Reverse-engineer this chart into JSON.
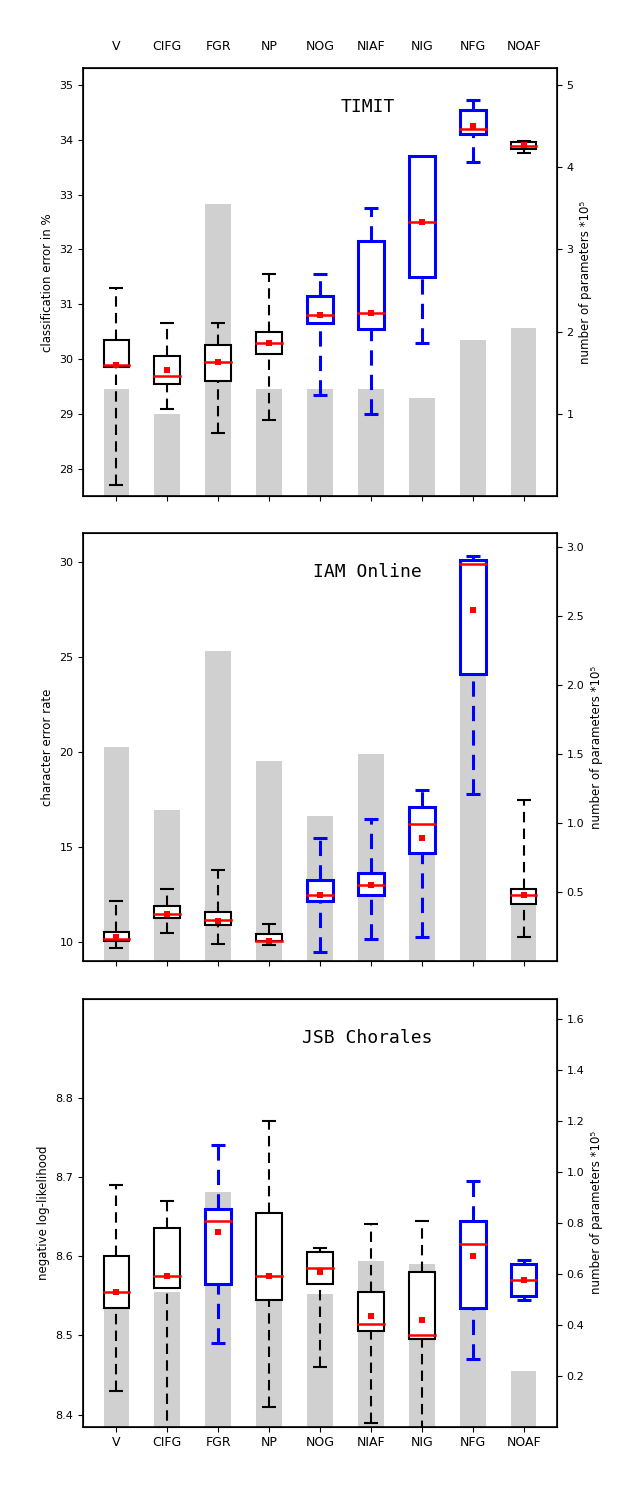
{
  "categories": [
    "V",
    "CIFG",
    "FGR",
    "NP",
    "NOG",
    "NIAF",
    "NIG",
    "NFG",
    "NOAF"
  ],
  "panel_titles": [
    "TIMIT",
    "IAM Online",
    "JSB Chorales"
  ],
  "ylabels": [
    "classification error in %",
    "character error rate",
    "negative log-likelihood"
  ],
  "ylabel_right": "number of parameters *10⁵",
  "timit": {
    "ylim": [
      27.5,
      35.3
    ],
    "yticks": [
      28,
      29,
      30,
      31,
      32,
      33,
      34,
      35
    ],
    "ylim_right": [
      0,
      5.2
    ],
    "yticks_right": [
      1,
      2,
      3,
      4,
      5
    ],
    "bar_heights": [
      1.3,
      1.0,
      3.55,
      1.3,
      1.3,
      1.3,
      1.2,
      1.9,
      2.05
    ],
    "boxes": [
      {
        "q1": 29.85,
        "median": 29.9,
        "q3": 30.35,
        "mean": 29.9,
        "whislo": 27.7,
        "whishi": 31.3,
        "color": "black"
      },
      {
        "q1": 29.55,
        "median": 29.7,
        "q3": 30.05,
        "mean": 29.8,
        "whislo": 29.1,
        "whishi": 30.65,
        "color": "black"
      },
      {
        "q1": 29.6,
        "median": 29.95,
        "q3": 30.25,
        "mean": 29.95,
        "whislo": 28.65,
        "whishi": 30.65,
        "color": "black"
      },
      {
        "q1": 30.1,
        "median": 30.3,
        "q3": 30.5,
        "mean": 30.3,
        "whislo": 28.9,
        "whishi": 31.55,
        "color": "black"
      },
      {
        "q1": 30.65,
        "median": 30.8,
        "q3": 31.15,
        "mean": 30.8,
        "whislo": 29.35,
        "whishi": 31.55,
        "color": "blue"
      },
      {
        "q1": 30.55,
        "median": 30.85,
        "q3": 32.15,
        "mean": 30.85,
        "whislo": 29.0,
        "whishi": 32.75,
        "color": "blue"
      },
      {
        "q1": 31.5,
        "median": 32.5,
        "q3": 33.7,
        "mean": 32.5,
        "whislo": 30.3,
        "whishi": 33.5,
        "color": "blue"
      },
      {
        "q1": 34.1,
        "median": 34.2,
        "q3": 34.55,
        "mean": 34.25,
        "whislo": 33.6,
        "whishi": 34.72,
        "color": "blue"
      },
      {
        "q1": 33.83,
        "median": 33.88,
        "q3": 33.95,
        "mean": 33.9,
        "whislo": 33.75,
        "whishi": 33.97,
        "color": "black"
      }
    ]
  },
  "iam": {
    "ylim": [
      9.0,
      31.5
    ],
    "yticks": [
      10,
      15,
      20,
      25,
      30
    ],
    "ylim_right": [
      0,
      3.1
    ],
    "yticks_right": [
      0.5,
      1.0,
      1.5,
      2.0,
      2.5,
      3.0
    ],
    "bar_heights": [
      1.55,
      1.1,
      2.25,
      1.45,
      1.05,
      1.5,
      0.85,
      2.75,
      0.45
    ],
    "boxes": [
      {
        "q1": 10.05,
        "median": 10.2,
        "q3": 10.55,
        "mean": 10.3,
        "whislo": 9.7,
        "whishi": 12.2,
        "color": "black"
      },
      {
        "q1": 11.3,
        "median": 11.5,
        "q3": 11.9,
        "mean": 11.5,
        "whislo": 10.5,
        "whishi": 12.8,
        "color": "black"
      },
      {
        "q1": 10.9,
        "median": 11.2,
        "q3": 11.6,
        "mean": 11.15,
        "whislo": 9.9,
        "whishi": 13.8,
        "color": "black"
      },
      {
        "q1": 10.05,
        "median": 10.1,
        "q3": 10.45,
        "mean": 10.1,
        "whislo": 9.85,
        "whishi": 10.95,
        "color": "black"
      },
      {
        "q1": 12.2,
        "median": 12.5,
        "q3": 13.3,
        "mean": 12.5,
        "whislo": 9.5,
        "whishi": 15.5,
        "color": "blue"
      },
      {
        "q1": 12.5,
        "median": 13.0,
        "q3": 13.65,
        "mean": 13.0,
        "whislo": 10.2,
        "whishi": 16.5,
        "color": "blue"
      },
      {
        "q1": 14.7,
        "median": 16.2,
        "q3": 17.1,
        "mean": 15.5,
        "whislo": 10.3,
        "whishi": 18.0,
        "color": "blue"
      },
      {
        "q1": 24.1,
        "median": 29.9,
        "q3": 30.1,
        "mean": 27.5,
        "whislo": 17.8,
        "whishi": 30.3,
        "color": "blue"
      },
      {
        "q1": 12.0,
        "median": 12.5,
        "q3": 12.8,
        "mean": 12.5,
        "whislo": 10.3,
        "whishi": 17.5,
        "color": "black"
      }
    ]
  },
  "jsb": {
    "ylim": [
      8.385,
      8.925
    ],
    "yticks": [
      8.4,
      8.5,
      8.6,
      8.7,
      8.8
    ],
    "ylim_right": [
      0.0,
      1.68
    ],
    "yticks_right": [
      0.2,
      0.4,
      0.6,
      0.8,
      1.0,
      1.2,
      1.4,
      1.6
    ],
    "bar_heights": [
      0.58,
      0.53,
      0.92,
      0.53,
      0.52,
      0.65,
      0.64,
      0.61,
      0.22
    ],
    "boxes": [
      {
        "q1": 8.535,
        "median": 8.555,
        "q3": 8.6,
        "mean": 8.555,
        "whislo": 8.43,
        "whishi": 8.69,
        "color": "black"
      },
      {
        "q1": 8.56,
        "median": 8.575,
        "q3": 8.635,
        "mean": 8.575,
        "whislo": 8.35,
        "whishi": 8.67,
        "color": "black"
      },
      {
        "q1": 8.565,
        "median": 8.645,
        "q3": 8.66,
        "mean": 8.63,
        "whislo": 8.49,
        "whishi": 8.74,
        "color": "blue"
      },
      {
        "q1": 8.545,
        "median": 8.575,
        "q3": 8.655,
        "mean": 8.575,
        "whislo": 8.41,
        "whishi": 8.77,
        "color": "black"
      },
      {
        "q1": 8.565,
        "median": 8.585,
        "q3": 8.605,
        "mean": 8.58,
        "whislo": 8.46,
        "whishi": 8.61,
        "color": "black"
      },
      {
        "q1": 8.505,
        "median": 8.515,
        "q3": 8.555,
        "mean": 8.525,
        "whislo": 8.39,
        "whishi": 8.64,
        "color": "black"
      },
      {
        "q1": 8.495,
        "median": 8.5,
        "q3": 8.58,
        "mean": 8.52,
        "whislo": 8.38,
        "whishi": 8.645,
        "color": "black"
      },
      {
        "q1": 8.535,
        "median": 8.615,
        "q3": 8.645,
        "mean": 8.6,
        "whislo": 8.47,
        "whishi": 8.695,
        "color": "blue"
      },
      {
        "q1": 8.55,
        "median": 8.57,
        "q3": 8.59,
        "mean": 8.57,
        "whislo": 8.545,
        "whishi": 8.595,
        "color": "blue"
      }
    ]
  }
}
